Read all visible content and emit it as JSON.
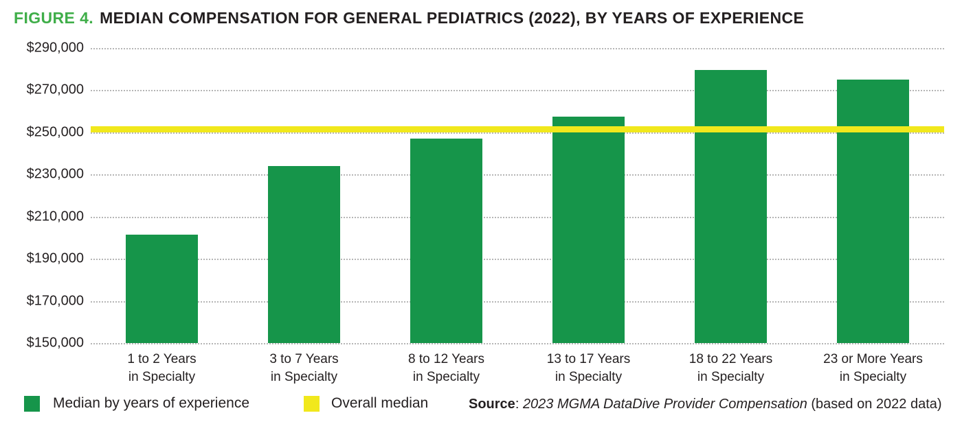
{
  "title": {
    "prefix": "FIGURE 4.",
    "text": "MEDIAN COMPENSATION FOR GENERAL PEDIATRICS (2022), BY YEARS OF EXPERIENCE"
  },
  "colors": {
    "bar_green": "#16954a",
    "title_green": "#3fae49",
    "median_yellow": "#f1e81c",
    "text": "#231f20",
    "gridline": "#b5b5b5",
    "background": "#ffffff"
  },
  "chart_data": {
    "type": "bar",
    "title": "FIGURE 4. MEDIAN COMPENSATION FOR GENERAL PEDIATRICS (2022), BY YEARS OF EXPERIENCE",
    "categories": [
      "1 to 2 Years in Specialty",
      "3 to 7 Years in Specialty",
      "8 to 12 Years in Specialty",
      "13 to 17 Years in Specialty",
      "18 to 22 Years in Specialty",
      "23 or More Years in Specialty"
    ],
    "category_lines": [
      {
        "line1": "1 to 2 Years",
        "line2": "in Specialty"
      },
      {
        "line1": "3 to 7 Years",
        "line2": "in Specialty"
      },
      {
        "line1": "8 to 12 Years",
        "line2": "in Specialty"
      },
      {
        "line1": "13 to 17 Years",
        "line2": "in Specialty"
      },
      {
        "line1": "18 to 22 Years",
        "line2": "in Specialty"
      },
      {
        "line1": "23 or More Years",
        "line2": "in Specialty"
      }
    ],
    "series": [
      {
        "name": "Median by years of experience",
        "values": [
          201500,
          234000,
          247000,
          257500,
          279500,
          275000
        ]
      }
    ],
    "values": [
      201500,
      234000,
      247000,
      257500,
      279500,
      275000
    ],
    "overall_median": {
      "label": "Overall median",
      "value": 251500
    },
    "xlabel": "",
    "ylabel": "",
    "ylim": [
      150000,
      290000
    ],
    "ytick_step": 20000,
    "ytick_labels": [
      "$290,000",
      "$270,000",
      "$250,000",
      "$230,000",
      "$210,000",
      "$190,000",
      "$170,000",
      "$150,000"
    ],
    "grid": "horizontal dotted",
    "legend_position": "bottom-left"
  },
  "legend": {
    "items": [
      {
        "label": "Median by years of experience",
        "color": "#16954a"
      },
      {
        "label": "Overall median",
        "color": "#f1e81c"
      }
    ]
  },
  "source": {
    "label": "Source",
    "separator": ": ",
    "citation": "2023 MGMA DataDive Provider Compensation",
    "suffix": " (based on 2022 data)"
  }
}
